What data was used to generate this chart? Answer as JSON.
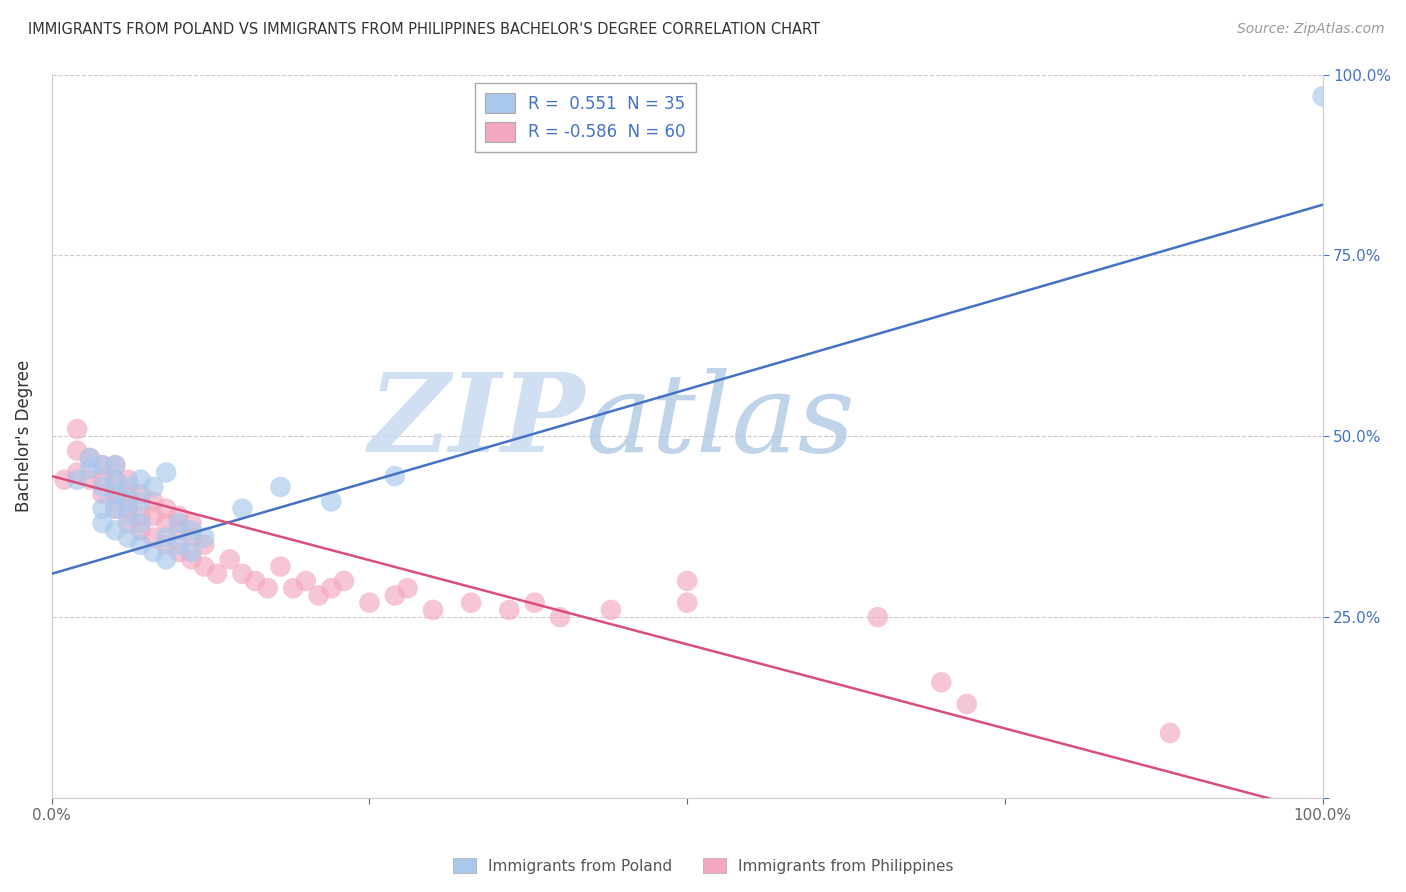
{
  "title": "IMMIGRANTS FROM POLAND VS IMMIGRANTS FROM PHILIPPINES BACHELOR'S DEGREE CORRELATION CHART",
  "source": "Source: ZipAtlas.com",
  "ylabel": "Bachelor's Degree",
  "legend_label1": "R =  0.551  N = 35",
  "legend_label2": "R = -0.586  N = 60",
  "legend_series1": "Immigrants from Poland",
  "legend_series2": "Immigrants from Philippines",
  "color1": "#A8C8EC",
  "color2": "#F4A8C0",
  "line_color1": "#4472C4",
  "line_color2": "#D94F7A",
  "watermark_zip": "ZIP",
  "watermark_atlas": "atlas",
  "watermark_color_zip": "#C8D8EE",
  "watermark_color_atlas": "#B0C8E8",
  "xlim": [
    0.0,
    1.0
  ],
  "ylim": [
    0.0,
    1.0
  ],
  "x_ticks": [
    0.0,
    0.25,
    0.5,
    0.75,
    1.0
  ],
  "x_tick_labels": [
    "0.0%",
    "",
    "",
    "",
    "100.0%"
  ],
  "y_ticks": [
    0.0,
    0.25,
    0.5,
    0.75,
    1.0
  ],
  "right_y_tick_labels": [
    "",
    "25.0%",
    "50.0%",
    "75.0%",
    "100.0%"
  ],
  "blue_line_start_y": 0.31,
  "blue_line_end_y": 0.82,
  "pink_line_start_y": 0.445,
  "pink_line_end_y": -0.02,
  "poland_x": [
    0.02,
    0.03,
    0.03,
    0.04,
    0.04,
    0.04,
    0.04,
    0.05,
    0.05,
    0.05,
    0.05,
    0.05,
    0.06,
    0.06,
    0.06,
    0.06,
    0.07,
    0.07,
    0.07,
    0.07,
    0.08,
    0.08,
    0.09,
    0.09,
    0.09,
    0.1,
    0.1,
    0.11,
    0.11,
    0.12,
    0.15,
    0.18,
    0.22,
    0.27,
    1.0
  ],
  "poland_y": [
    0.44,
    0.455,
    0.47,
    0.38,
    0.4,
    0.43,
    0.46,
    0.37,
    0.4,
    0.42,
    0.44,
    0.46,
    0.36,
    0.39,
    0.41,
    0.43,
    0.35,
    0.38,
    0.41,
    0.44,
    0.34,
    0.43,
    0.33,
    0.36,
    0.45,
    0.35,
    0.38,
    0.34,
    0.37,
    0.36,
    0.4,
    0.43,
    0.41,
    0.445,
    0.97
  ],
  "philippines_x": [
    0.01,
    0.02,
    0.02,
    0.02,
    0.03,
    0.03,
    0.04,
    0.04,
    0.04,
    0.05,
    0.05,
    0.05,
    0.05,
    0.06,
    0.06,
    0.06,
    0.06,
    0.07,
    0.07,
    0.07,
    0.08,
    0.08,
    0.08,
    0.09,
    0.09,
    0.09,
    0.1,
    0.1,
    0.1,
    0.11,
    0.11,
    0.11,
    0.12,
    0.12,
    0.13,
    0.14,
    0.15,
    0.16,
    0.17,
    0.18,
    0.19,
    0.2,
    0.21,
    0.22,
    0.23,
    0.25,
    0.27,
    0.28,
    0.3,
    0.33,
    0.36,
    0.38,
    0.4,
    0.44,
    0.5,
    0.5,
    0.65,
    0.7,
    0.72,
    0.88
  ],
  "philippines_y": [
    0.44,
    0.45,
    0.48,
    0.51,
    0.44,
    0.47,
    0.42,
    0.44,
    0.46,
    0.4,
    0.42,
    0.44,
    0.46,
    0.38,
    0.4,
    0.42,
    0.44,
    0.37,
    0.39,
    0.42,
    0.36,
    0.39,
    0.41,
    0.35,
    0.38,
    0.4,
    0.34,
    0.37,
    0.39,
    0.33,
    0.36,
    0.38,
    0.32,
    0.35,
    0.31,
    0.33,
    0.31,
    0.3,
    0.29,
    0.32,
    0.29,
    0.3,
    0.28,
    0.29,
    0.3,
    0.27,
    0.28,
    0.29,
    0.26,
    0.27,
    0.26,
    0.27,
    0.25,
    0.26,
    0.27,
    0.3,
    0.25,
    0.16,
    0.13,
    0.09
  ]
}
